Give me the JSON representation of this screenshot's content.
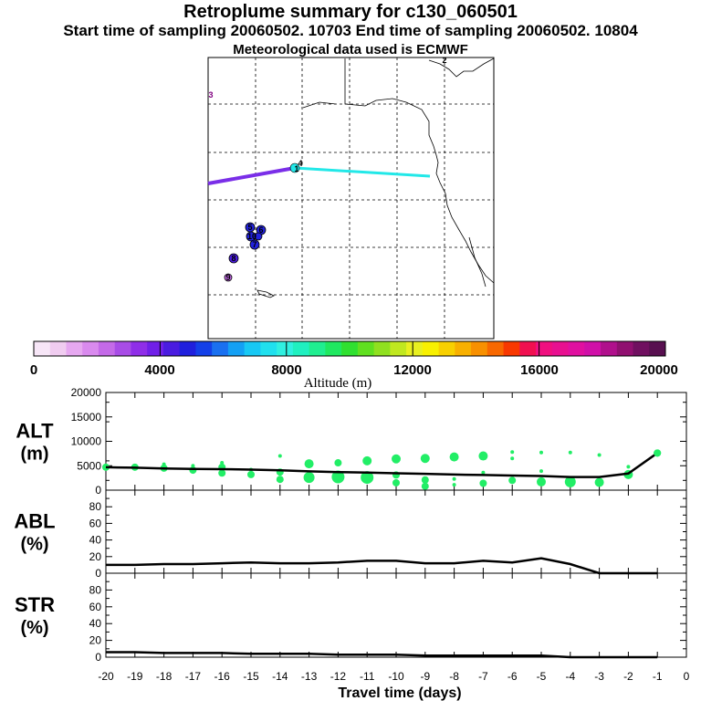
{
  "title": "Retroplume summary for c130_060501",
  "subtitle": "Start time of sampling 20060502. 10703     End time of sampling 20060502. 10804",
  "met_line": "Meteorological data used is ECMWF",
  "map": {
    "marker_labels": [
      "1",
      "2",
      "3",
      "4",
      "5",
      "6",
      "7",
      "8",
      "9",
      "10"
    ],
    "plume_colors": {
      "violet": "#7a2ee8",
      "cyan": "#22e8e8",
      "blue": "#2222dd"
    }
  },
  "colorbar": {
    "tick_labels": [
      "0",
      "4000",
      "8000",
      "12000",
      "16000",
      "20000"
    ],
    "title": "Altitude (m)",
    "colors": [
      "#f7e6f7",
      "#f0ccf0",
      "#e6a8f0",
      "#d98aee",
      "#c46ae8",
      "#a84ce6",
      "#8f2ee8",
      "#7020e8",
      "#4a1ce0",
      "#2020dd",
      "#1440e8",
      "#1a70f0",
      "#14a0f4",
      "#18c8f4",
      "#20e0ee",
      "#30f0e0",
      "#20f0c0",
      "#20ee90",
      "#20e860",
      "#30e030",
      "#60e020",
      "#90e020",
      "#c0e820",
      "#e8f020",
      "#f8f000",
      "#f8d000",
      "#f8b000",
      "#f89000",
      "#f86800",
      "#f83800",
      "#f01050",
      "#f01080",
      "#e81090",
      "#e010a0",
      "#d010a8",
      "#b0108c",
      "#901070",
      "#701060",
      "#581050"
    ]
  },
  "chart_data": [
    {
      "type": "line",
      "panel_label": [
        "ALT",
        "(m)"
      ],
      "x": [
        -20,
        -19,
        -18,
        -17,
        -16,
        -15,
        -14,
        -13,
        -12,
        -11,
        -10,
        -9,
        -8,
        -7,
        -6,
        -5,
        -4,
        -3,
        -2,
        -1
      ],
      "series": [
        {
          "name": "mean altitude",
          "values": [
            4700,
            4600,
            4450,
            4350,
            4300,
            4200,
            4050,
            3850,
            3700,
            3600,
            3450,
            3350,
            3200,
            3100,
            3000,
            2900,
            2700,
            2700,
            3400,
            7600
          ]
        }
      ],
      "points": [
        {
          "x": -20,
          "y": 4700,
          "r": 4
        },
        {
          "x": -19,
          "y": 4700,
          "r": 4
        },
        {
          "x": -18,
          "y": 4500,
          "r": 4
        },
        {
          "x": -18,
          "y": 5300,
          "r": 2
        },
        {
          "x": -17,
          "y": 4100,
          "r": 4
        },
        {
          "x": -17,
          "y": 5000,
          "r": 2
        },
        {
          "x": -16,
          "y": 3500,
          "r": 4
        },
        {
          "x": -16,
          "y": 4700,
          "r": 4
        },
        {
          "x": -16,
          "y": 5600,
          "r": 2
        },
        {
          "x": -15,
          "y": 3200,
          "r": 4
        },
        {
          "x": -15,
          "y": 4200,
          "r": 2
        },
        {
          "x": -14,
          "y": 2200,
          "r": 4
        },
        {
          "x": -14,
          "y": 3700,
          "r": 4
        },
        {
          "x": -14,
          "y": 7000,
          "r": 2
        },
        {
          "x": -13,
          "y": 2600,
          "r": 6
        },
        {
          "x": -13,
          "y": 5400,
          "r": 5
        },
        {
          "x": -12,
          "y": 2700,
          "r": 7
        },
        {
          "x": -12,
          "y": 5600,
          "r": 4
        },
        {
          "x": -11,
          "y": 2600,
          "r": 7
        },
        {
          "x": -11,
          "y": 6000,
          "r": 5
        },
        {
          "x": -10,
          "y": 1500,
          "r": 4
        },
        {
          "x": -10,
          "y": 3100,
          "r": 4
        },
        {
          "x": -10,
          "y": 6400,
          "r": 5
        },
        {
          "x": -9,
          "y": 800,
          "r": 4
        },
        {
          "x": -9,
          "y": 2100,
          "r": 4
        },
        {
          "x": -9,
          "y": 6500,
          "r": 5
        },
        {
          "x": -8,
          "y": 1100,
          "r": 2
        },
        {
          "x": -8,
          "y": 2300,
          "r": 2
        },
        {
          "x": -8,
          "y": 6800,
          "r": 5
        },
        {
          "x": -7,
          "y": 1400,
          "r": 4
        },
        {
          "x": -7,
          "y": 3600,
          "r": 2
        },
        {
          "x": -7,
          "y": 7000,
          "r": 5
        },
        {
          "x": -6,
          "y": 2000,
          "r": 4
        },
        {
          "x": -6,
          "y": 6500,
          "r": 2
        },
        {
          "x": -6,
          "y": 7800,
          "r": 2
        },
        {
          "x": -5,
          "y": 1700,
          "r": 5
        },
        {
          "x": -5,
          "y": 3900,
          "r": 2
        },
        {
          "x": -5,
          "y": 7700,
          "r": 2
        },
        {
          "x": -4,
          "y": 1700,
          "r": 6
        },
        {
          "x": -4,
          "y": 7700,
          "r": 2
        },
        {
          "x": -3,
          "y": 1600,
          "r": 5
        },
        {
          "x": -3,
          "y": 7200,
          "r": 2
        },
        {
          "x": -2,
          "y": 3200,
          "r": 5
        },
        {
          "x": -2,
          "y": 4800,
          "r": 2
        },
        {
          "x": -1,
          "y": 7600,
          "r": 4
        }
      ],
      "xlim": [
        -20,
        0
      ],
      "ylim": [
        0,
        20000
      ],
      "yticks": [
        "0",
        "5000",
        "10000",
        "15000",
        "20000"
      ]
    },
    {
      "type": "line",
      "panel_label": [
        "ABL",
        "(%)"
      ],
      "x": [
        -20,
        -19,
        -18,
        -17,
        -16,
        -15,
        -14,
        -13,
        -12,
        -11,
        -10,
        -9,
        -8,
        -7,
        -6,
        -5,
        -4,
        -3,
        -2,
        -1
      ],
      "series": [
        {
          "name": "fraction in ABL",
          "values": [
            10,
            10,
            11,
            11,
            12,
            13,
            12,
            12,
            13,
            15,
            15,
            12,
            12,
            15,
            13,
            18,
            11,
            0,
            0,
            0
          ]
        }
      ],
      "xlim": [
        -20,
        0
      ],
      "ylim": [
        0,
        100
      ],
      "yticks": [
        "0",
        "20",
        "40",
        "60",
        "80"
      ]
    },
    {
      "type": "line",
      "panel_label": [
        "STR",
        "(%)"
      ],
      "x": [
        -20,
        -19,
        -18,
        -17,
        -16,
        -15,
        -14,
        -13,
        -12,
        -11,
        -10,
        -9,
        -8,
        -7,
        -6,
        -5,
        -4,
        -3,
        -2,
        -1
      ],
      "series": [
        {
          "name": "fraction in stratosphere",
          "values": [
            6,
            6,
            5,
            5,
            5,
            4,
            4,
            4,
            3,
            3,
            3,
            2,
            2,
            2,
            2,
            2,
            0,
            0,
            0,
            0
          ]
        }
      ],
      "xlim": [
        -20,
        0
      ],
      "ylim": [
        0,
        100
      ],
      "yticks": [
        "0",
        "20",
        "40",
        "60",
        "80"
      ],
      "xticks": [
        "-20",
        "-19",
        "-18",
        "-17",
        "-16",
        "-15",
        "-14",
        "-13",
        "-12",
        "-11",
        "-10",
        "-9",
        "-8",
        "-7",
        "-6",
        "-5",
        "-4",
        "-3",
        "-2",
        "-1",
        "0"
      ],
      "xlabel": "Travel time (days)"
    }
  ]
}
